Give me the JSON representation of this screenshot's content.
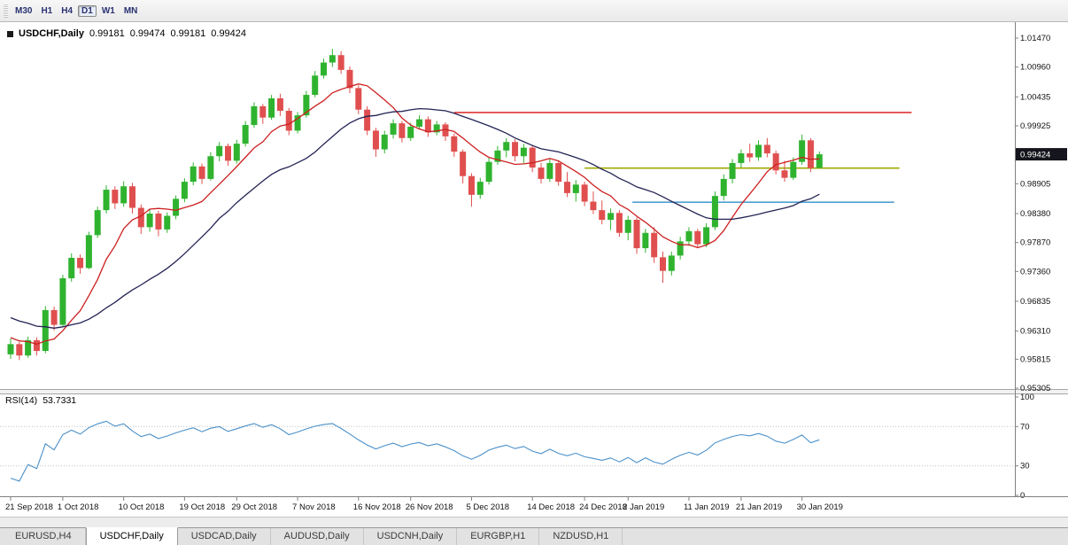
{
  "toolbar": {
    "timeframes": [
      {
        "label": "M30",
        "active": false
      },
      {
        "label": "H1",
        "active": false
      },
      {
        "label": "H4",
        "active": false
      },
      {
        "label": "D1",
        "active": true
      },
      {
        "label": "W1",
        "active": false
      },
      {
        "label": "MN",
        "active": false
      }
    ]
  },
  "tabs": [
    {
      "label": "EURUSD,H4",
      "active": false
    },
    {
      "label": "USDCHF,Daily",
      "active": true
    },
    {
      "label": "USDCAD,Daily",
      "active": false
    },
    {
      "label": "AUDUSD,Daily",
      "active": false
    },
    {
      "label": "USDCNH,Daily",
      "active": false
    },
    {
      "label": "EURGBP,H1",
      "active": false
    },
    {
      "label": "NZDUSD,H1",
      "active": false
    }
  ],
  "chart_data": {
    "type": "candlestick",
    "symbol_period": "USDCHF,Daily",
    "ohlc_display": {
      "open": "0.99181",
      "high": "0.99474",
      "low": "0.99181",
      "close": "0.99424"
    },
    "price_range": {
      "top": 1.0147,
      "bottom": 0.95305
    },
    "price_axis": {
      "ticks": [
        "1.01470",
        "1.00960",
        "1.00435",
        "0.99925",
        "0.98905",
        "0.98380",
        "0.97870",
        "0.97360",
        "0.96835",
        "0.96310",
        "0.95815",
        "0.95305"
      ],
      "current_label": "0.99424",
      "current_price": 0.99424
    },
    "colors": {
      "candle_up": "#2fb32f",
      "candle_down": "#e04f4f",
      "badge_bg": "#15151d",
      "badge_text": "#ffffff",
      "rsi_line": "#4a90c9",
      "axis_line": "#808080"
    },
    "moving_averages": [
      {
        "period": 8,
        "color": "#cc2020"
      },
      {
        "period": 21,
        "color": "#232355"
      }
    ],
    "horizontal_lines": [
      {
        "price": 1.0016,
        "color": "#e03434",
        "from_index": 51,
        "to_index": 103.6
      },
      {
        "price": 0.9918,
        "color": "#a0aa00",
        "from_index": 66,
        "to_index": 102.2
      },
      {
        "price": 0.9858,
        "color": "#4f9fd4",
        "from_index": 71.5,
        "to_index": 101.6
      }
    ],
    "ma_seed_closes": [
      0.9716,
      0.9708,
      0.9699,
      0.9705,
      0.9694,
      0.9688,
      0.9678,
      0.9684,
      0.9672,
      0.9663,
      0.9655,
      0.9648,
      0.9654,
      0.9642,
      0.9634,
      0.9626,
      0.9632,
      0.9621,
      0.9615,
      0.9608,
      0.9612
    ],
    "candles": [
      [
        0.959,
        0.9618,
        0.9582,
        0.9608
      ],
      [
        0.9608,
        0.9612,
        0.958,
        0.9588
      ],
      [
        0.9588,
        0.9621,
        0.9584,
        0.9615
      ],
      [
        0.9615,
        0.962,
        0.9588,
        0.9596
      ],
      [
        0.9596,
        0.9675,
        0.9592,
        0.9668
      ],
      [
        0.9668,
        0.9674,
        0.9632,
        0.9642
      ],
      [
        0.9642,
        0.973,
        0.964,
        0.9724
      ],
      [
        0.9724,
        0.9768,
        0.9718,
        0.976
      ],
      [
        0.976,
        0.9766,
        0.9732,
        0.9742
      ],
      [
        0.9742,
        0.9806,
        0.974,
        0.98
      ],
      [
        0.98,
        0.985,
        0.9795,
        0.9844
      ],
      [
        0.9844,
        0.9888,
        0.9838,
        0.988
      ],
      [
        0.988,
        0.9886,
        0.9846,
        0.9856
      ],
      [
        0.9856,
        0.9895,
        0.985,
        0.9886
      ],
      [
        0.9886,
        0.9892,
        0.9838,
        0.9848
      ],
      [
        0.9848,
        0.9854,
        0.9802,
        0.9814
      ],
      [
        0.9814,
        0.9846,
        0.9806,
        0.9838
      ],
      [
        0.9838,
        0.9843,
        0.9798,
        0.981
      ],
      [
        0.981,
        0.984,
        0.9804,
        0.9834
      ],
      [
        0.9834,
        0.987,
        0.9828,
        0.9864
      ],
      [
        0.9864,
        0.99,
        0.9858,
        0.9894
      ],
      [
        0.9894,
        0.9928,
        0.9888,
        0.9921
      ],
      [
        0.9921,
        0.9926,
        0.989,
        0.9899
      ],
      [
        0.9899,
        0.9946,
        0.9896,
        0.9939
      ],
      [
        0.9939,
        0.9964,
        0.993,
        0.9957
      ],
      [
        0.9957,
        0.9961,
        0.9922,
        0.9931
      ],
      [
        0.9931,
        0.9968,
        0.9926,
        0.9961
      ],
      [
        0.9961,
        1.0001,
        0.9956,
        0.9994
      ],
      [
        0.9994,
        1.0034,
        0.9989,
        1.0027
      ],
      [
        1.0027,
        1.0031,
        0.9996,
        1.0007
      ],
      [
        1.0007,
        1.0047,
        1.0003,
        1.0041
      ],
      [
        1.0041,
        1.0049,
        1.001,
        1.0019
      ],
      [
        1.0019,
        1.0024,
        0.9976,
        0.9984
      ],
      [
        0.9984,
        1.0017,
        0.9979,
        1.0011
      ],
      [
        1.0011,
        1.0054,
        1.0007,
        1.0047
      ],
      [
        1.0047,
        1.0089,
        1.0043,
        1.0081
      ],
      [
        1.0081,
        1.0111,
        1.0076,
        1.0104
      ],
      [
        1.0104,
        1.0128,
        1.0096,
        1.0117
      ],
      [
        1.0117,
        1.0124,
        1.0084,
        1.0091
      ],
      [
        1.0091,
        1.0097,
        1.005,
        1.0059
      ],
      [
        1.0059,
        1.0064,
        1.0013,
        1.0021
      ],
      [
        1.0021,
        1.0027,
        0.9976,
        0.9984
      ],
      [
        0.9984,
        0.9989,
        0.9938,
        0.9951
      ],
      [
        0.9951,
        0.9984,
        0.9944,
        0.9977
      ],
      [
        0.9977,
        1.0004,
        0.997,
        0.9997
      ],
      [
        0.9997,
        1.0001,
        0.9963,
        0.9971
      ],
      [
        0.9971,
        0.9998,
        0.9966,
        0.9991
      ],
      [
        0.9991,
        1.0011,
        0.9986,
        1.0004
      ],
      [
        1.0004,
        1.0009,
        0.9973,
        0.9981
      ],
      [
        0.9981,
        1.0001,
        0.9976,
        0.9995
      ],
      [
        0.9995,
        0.9999,
        0.9966,
        0.9974
      ],
      [
        0.9974,
        0.9979,
        0.9938,
        0.9947
      ],
      [
        0.9947,
        0.9951,
        0.9891,
        0.9904
      ],
      [
        0.9904,
        0.9909,
        0.985,
        0.9871
      ],
      [
        0.9871,
        0.9901,
        0.9864,
        0.9894
      ],
      [
        0.9894,
        0.9936,
        0.9889,
        0.9929
      ],
      [
        0.9929,
        0.9957,
        0.9924,
        0.9949
      ],
      [
        0.9949,
        0.9971,
        0.9937,
        0.9964
      ],
      [
        0.9964,
        0.9969,
        0.993,
        0.9939
      ],
      [
        0.9939,
        0.9961,
        0.9927,
        0.9954
      ],
      [
        0.9954,
        0.9959,
        0.9911,
        0.9919
      ],
      [
        0.9919,
        0.9927,
        0.9891,
        0.9899
      ],
      [
        0.9899,
        0.9934,
        0.9894,
        0.9927
      ],
      [
        0.9927,
        0.9931,
        0.9887,
        0.9894
      ],
      [
        0.9894,
        0.9911,
        0.9867,
        0.9874
      ],
      [
        0.9874,
        0.9897,
        0.9859,
        0.9889
      ],
      [
        0.9889,
        0.9894,
        0.9851,
        0.9859
      ],
      [
        0.9859,
        0.9877,
        0.9837,
        0.9844
      ],
      [
        0.9844,
        0.9861,
        0.9819,
        0.9827
      ],
      [
        0.9827,
        0.9847,
        0.9809,
        0.9839
      ],
      [
        0.9839,
        0.9844,
        0.9797,
        0.9804
      ],
      [
        0.9804,
        0.9834,
        0.9791,
        0.9827
      ],
      [
        0.9827,
        0.9831,
        0.9767,
        0.9777
      ],
      [
        0.9777,
        0.9811,
        0.9769,
        0.9804
      ],
      [
        0.9804,
        0.9814,
        0.9751,
        0.9761
      ],
      [
        0.9761,
        0.9771,
        0.9716,
        0.9737
      ],
      [
        0.9737,
        0.9771,
        0.9729,
        0.9764
      ],
      [
        0.9764,
        0.9797,
        0.9757,
        0.9789
      ],
      [
        0.9789,
        0.9814,
        0.9781,
        0.9807
      ],
      [
        0.9807,
        0.9811,
        0.9777,
        0.9784
      ],
      [
        0.9784,
        0.9821,
        0.9779,
        0.9814
      ],
      [
        0.9814,
        0.9877,
        0.9809,
        0.9869
      ],
      [
        0.9869,
        0.9907,
        0.9861,
        0.9899
      ],
      [
        0.9899,
        0.9934,
        0.9891,
        0.9927
      ],
      [
        0.9927,
        0.9951,
        0.9919,
        0.9944
      ],
      [
        0.9944,
        0.9961,
        0.9929,
        0.9937
      ],
      [
        0.9937,
        0.9967,
        0.9931,
        0.9959
      ],
      [
        0.9959,
        0.9971,
        0.9937,
        0.9944
      ],
      [
        0.9944,
        0.9949,
        0.9907,
        0.9914
      ],
      [
        0.9914,
        0.9931,
        0.9894,
        0.9901
      ],
      [
        0.9901,
        0.9937,
        0.9897,
        0.9929
      ],
      [
        0.9929,
        0.9977,
        0.9924,
        0.9967
      ],
      [
        0.9967,
        0.9971,
        0.9911,
        0.9918
      ],
      [
        0.99181,
        0.99474,
        0.99181,
        0.99424
      ]
    ],
    "x_axis_labels": [
      {
        "index": 0,
        "label": "21 Sep 2018"
      },
      {
        "index": 6,
        "label": "1 Oct 2018"
      },
      {
        "index": 13,
        "label": "10 Oct 2018"
      },
      {
        "index": 20,
        "label": "19 Oct 2018"
      },
      {
        "index": 26,
        "label": "29 Oct 2018"
      },
      {
        "index": 33,
        "label": "7 Nov 2018"
      },
      {
        "index": 40,
        "label": "16 Nov 2018"
      },
      {
        "index": 46,
        "label": "26 Nov 2018"
      },
      {
        "index": 53,
        "label": "5 Dec 2018"
      },
      {
        "index": 60,
        "label": "14 Dec 2018"
      },
      {
        "index": 66,
        "label": "24 Dec 2018"
      },
      {
        "index": 71,
        "label": "2 Jan 2019"
      },
      {
        "index": 78,
        "label": "11 Jan 2019"
      },
      {
        "index": 84,
        "label": "21 Jan 2019"
      },
      {
        "index": 91,
        "label": "30 Jan 2019"
      }
    ],
    "rsi": {
      "label_display": "RSI(14)",
      "period": 14,
      "current_value": "53.7331",
      "levels": [
        "100",
        "70",
        "30",
        "0"
      ],
      "level_values": [
        100,
        70,
        30,
        0
      ],
      "overbought": 70,
      "oversold": 30
    }
  }
}
